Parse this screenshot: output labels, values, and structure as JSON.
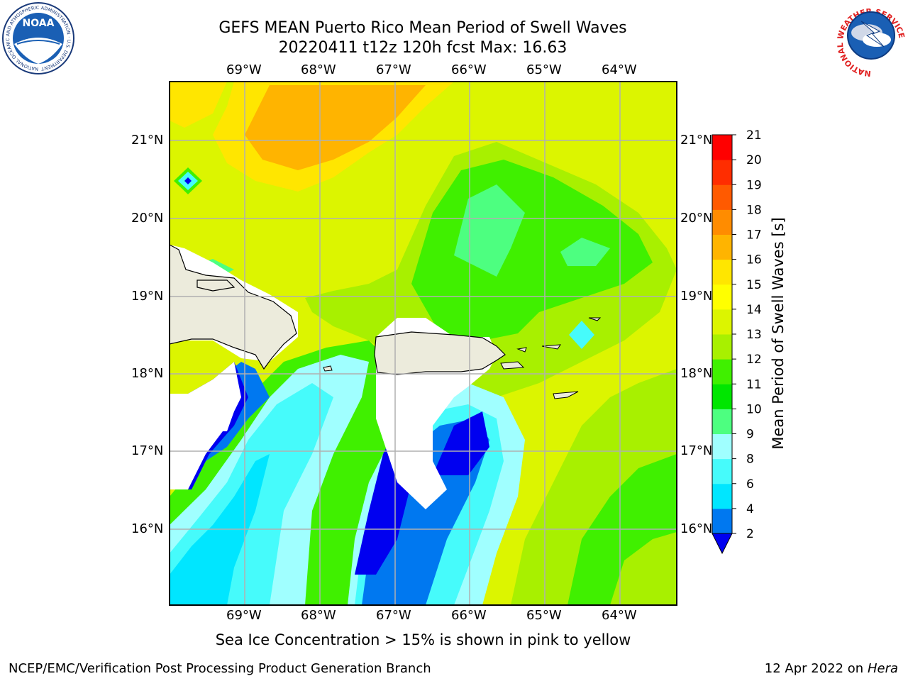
{
  "header": {
    "title_line1": "GEFS MEAN Puerto Rico Mean Period of Swell Waves",
    "title_line2": "20220411 t12z 120h fcst   Max: 16.63"
  },
  "map": {
    "lon_ticks": [
      "69°W",
      "68°W",
      "67°W",
      "66°W",
      "65°W",
      "64°W"
    ],
    "lat_ticks": [
      "21°N",
      "20°N",
      "19°N",
      "18°N",
      "17°N",
      "16°N"
    ],
    "colors": {
      "land": "#ecebdc",
      "grid": "#b0b0b0"
    }
  },
  "colorbar": {
    "label": "Mean Period of Swell Waves [s]",
    "ticks": [
      "2",
      "4",
      "6",
      "8",
      "9",
      "10",
      "11",
      "12",
      "13",
      "14",
      "15",
      "16",
      "17",
      "18",
      "19",
      "20",
      "21"
    ],
    "colors": [
      "#0000f0",
      "#0078f0",
      "#00e6ff",
      "#46fbfb",
      "#a0ffff",
      "#4dff80",
      "#00e600",
      "#40f000",
      "#a8f000",
      "#dcf500",
      "#ffff00",
      "#ffe600",
      "#ffb400",
      "#ff8c00",
      "#ff5a00",
      "#ff2d00",
      "#ff0000"
    ]
  },
  "caption": "Sea Ice Concentration > 15% is shown in pink to yellow",
  "footer": {
    "left": "NCEP/EMC/Verification Post Processing Product Generation Branch",
    "date": "12 Apr 2022 on ",
    "host": "Hera"
  },
  "logos": {
    "noaa_text": "NOAA",
    "noaa_ring": "NATIONAL OCEANIC AND ATMOSPHERIC ADMINISTRATION · U.S. DEPARTMENT OF COMMERCE",
    "nws_ring": "NATIONAL WEATHER SERVICE"
  }
}
